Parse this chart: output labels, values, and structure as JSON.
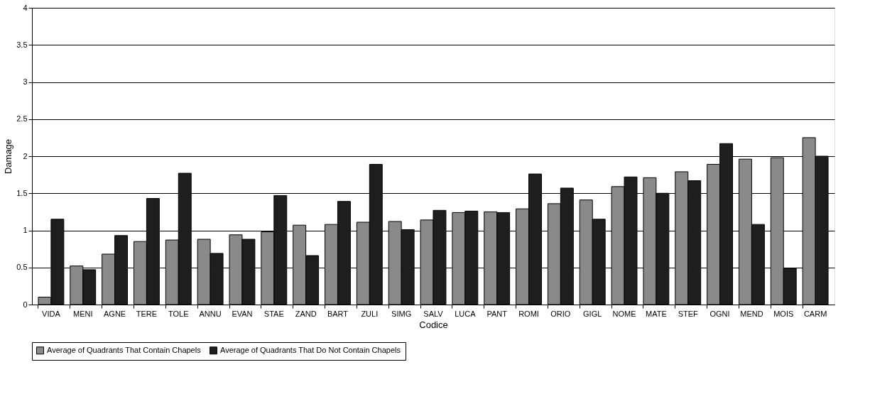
{
  "chart_data": {
    "type": "bar",
    "xlabel": "Codice",
    "ylabel": "Damage",
    "categories": [
      "VIDA",
      "MENI",
      "AGNE",
      "TERE",
      "TOLE",
      "ANNU",
      "EVAN",
      "STAE",
      "ZAND",
      "BART",
      "ZULI",
      "SIMG",
      "SALV",
      "LUCA",
      "PANT",
      "ROMI",
      "ORIO",
      "GIGL",
      "NOME",
      "MATE",
      "STEF",
      "OGNI",
      "MEND",
      "MOIS",
      "CARM"
    ],
    "series": [
      {
        "name": "Average of Quadrants That Contain Chapels",
        "color": "#8a8a8a",
        "values": [
          0.1,
          0.52,
          0.68,
          0.85,
          0.87,
          0.88,
          0.94,
          0.98,
          1.07,
          1.08,
          1.11,
          1.12,
          1.14,
          1.24,
          1.25,
          1.29,
          1.36,
          1.41,
          1.59,
          1.71,
          1.79,
          1.89,
          1.96,
          1.98,
          2.25
        ]
      },
      {
        "name": "Average of Quadrants That Do Not Contain Chapels",
        "color": "#1e1e1e",
        "values": [
          1.15,
          0.47,
          0.93,
          1.43,
          1.77,
          0.69,
          0.88,
          1.47,
          0.66,
          1.39,
          1.89,
          1.01,
          1.27,
          1.26,
          1.24,
          1.76,
          1.57,
          1.15,
          1.72,
          1.5,
          1.67,
          2.17,
          1.08,
          0.49,
          2.0
        ]
      }
    ],
    "ylim": [
      0,
      4
    ],
    "yticks": [
      0,
      0.5,
      1,
      1.5,
      2,
      2.5,
      3,
      3.5,
      4
    ],
    "grid": "y",
    "legend": "bottom"
  }
}
